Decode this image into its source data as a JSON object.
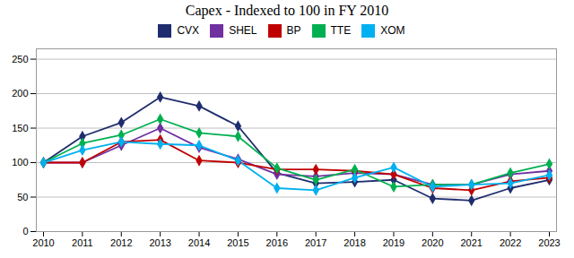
{
  "chart_data": {
    "type": "line",
    "title": "Capex - Indexed to 100 in FY 2010",
    "x": [
      2010,
      2011,
      2012,
      2013,
      2014,
      2015,
      2016,
      2017,
      2018,
      2019,
      2020,
      2021,
      2022,
      2023
    ],
    "series": [
      {
        "name": "CVX",
        "color": "#1f2d6e",
        "values": [
          100,
          138,
          158,
          195,
          182,
          153,
          85,
          70,
          72,
          75,
          48,
          45,
          63,
          75
        ]
      },
      {
        "name": "SHEL",
        "color": "#7030a0",
        "values": [
          100,
          100,
          125,
          150,
          122,
          105,
          83,
          80,
          85,
          83,
          68,
          68,
          83,
          88
        ]
      },
      {
        "name": "BP",
        "color": "#c00000",
        "values": [
          100,
          100,
          130,
          133,
          103,
          100,
          90,
          90,
          88,
          83,
          63,
          60,
          73,
          78
        ]
      },
      {
        "name": "TTE",
        "color": "#00b050",
        "values": [
          100,
          128,
          140,
          163,
          143,
          138,
          92,
          75,
          90,
          65,
          68,
          68,
          85,
          98
        ]
      },
      {
        "name": "XOM",
        "color": "#00b0f0",
        "values": [
          100,
          118,
          130,
          127,
          125,
          103,
          63,
          60,
          78,
          93,
          65,
          68,
          70,
          82
        ]
      }
    ],
    "xlim": [
      2010,
      2023
    ],
    "xticks": [
      2010,
      2011,
      2012,
      2013,
      2014,
      2015,
      2016,
      2017,
      2018,
      2019,
      2020,
      2021,
      2022,
      2023
    ],
    "ylim": [
      0,
      265
    ],
    "yticks": [
      0,
      50,
      100,
      150,
      200,
      250
    ],
    "grid": true,
    "legend": "top",
    "marker": "diamond",
    "line_style": "solid"
  }
}
